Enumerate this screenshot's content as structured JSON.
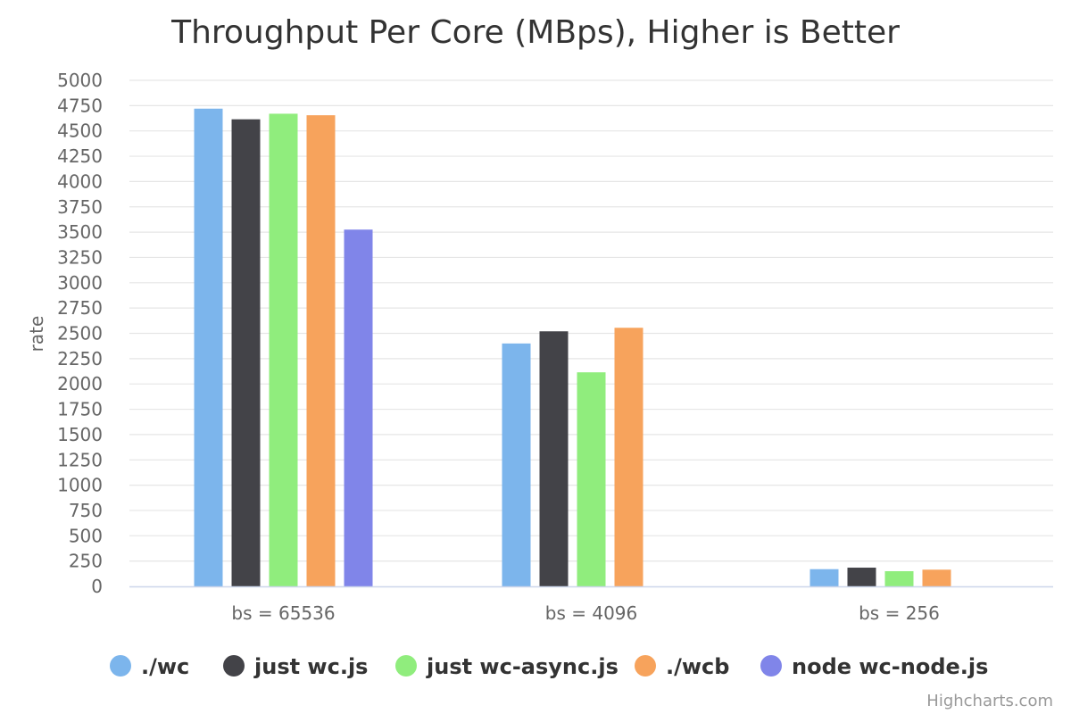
{
  "chart_data": {
    "type": "bar",
    "title": "Throughput Per Core (MBps), Higher is Better",
    "xlabel": "",
    "ylabel": "rate",
    "ylim": [
      0,
      5000
    ],
    "ytick_step": 250,
    "grid": true,
    "legend_position": "bottom-center",
    "categories": [
      "bs = 65536",
      "bs = 4096",
      "bs = 256"
    ],
    "series": [
      {
        "name": "./wc",
        "color": "#7cb5ec",
        "values": [
          4720,
          2400,
          170
        ]
      },
      {
        "name": "just wc.js",
        "color": "#434348",
        "values": [
          4615,
          2520,
          185
        ]
      },
      {
        "name": "just wc-async.js",
        "color": "#90ed7d",
        "values": [
          4670,
          2115,
          150
        ]
      },
      {
        "name": "./wcb",
        "color": "#f7a35c",
        "values": [
          4655,
          2555,
          165
        ]
      },
      {
        "name": "node wc-node.js",
        "color": "#8085e9",
        "values": [
          3525,
          null,
          null
        ]
      }
    ]
  },
  "credit": "Highcharts.com"
}
